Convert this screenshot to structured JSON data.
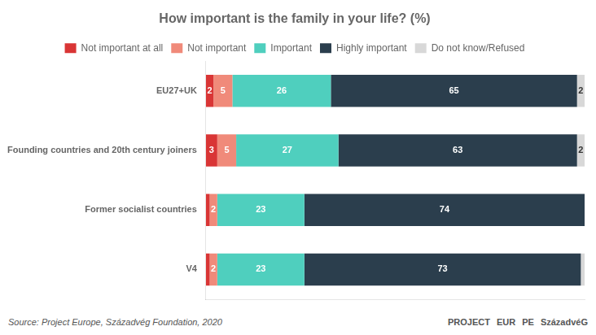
{
  "chart_data": {
    "type": "bar",
    "orientation": "horizontal",
    "stacked": true,
    "title": "How important is the family in your life? (%)",
    "categories": [
      "EU27+UK",
      "Founding countries and 20th century joiners",
      "Former socialist countries",
      "V4"
    ],
    "series": [
      {
        "name": "Not important at all",
        "color": "#d93535",
        "values": [
          2,
          3,
          1,
          1
        ],
        "value_labels": [
          "2",
          "3",
          null,
          null
        ]
      },
      {
        "name": "Not important",
        "color": "#f08a7a",
        "values": [
          5,
          5,
          2,
          2
        ],
        "value_labels": [
          "5",
          "5",
          "2",
          "2"
        ]
      },
      {
        "name": "Important",
        "color": "#4fcfbe",
        "values": [
          26,
          27,
          23,
          23
        ],
        "value_labels": [
          "26",
          "27",
          "23",
          "23"
        ]
      },
      {
        "name": "Highly important",
        "color": "#2b3e4d",
        "values": [
          65,
          63,
          74,
          73
        ],
        "value_labels": [
          "65",
          "63",
          "74",
          "73"
        ]
      },
      {
        "name": "Do not know/Refused",
        "color": "#d8d8d8",
        "values": [
          2,
          2,
          0,
          1
        ],
        "value_labels": [
          "2",
          "2",
          null,
          null
        ]
      }
    ],
    "xlim": [
      0,
      100
    ],
    "data_labels": true,
    "tick_labels": "y",
    "grid": false,
    "legend": "top",
    "annotations": [
      "Source: Project Europe, Századvég Foundation, 2020",
      "PROJECT",
      "EUR",
      "PE",
      "SzázadvéG"
    ]
  }
}
